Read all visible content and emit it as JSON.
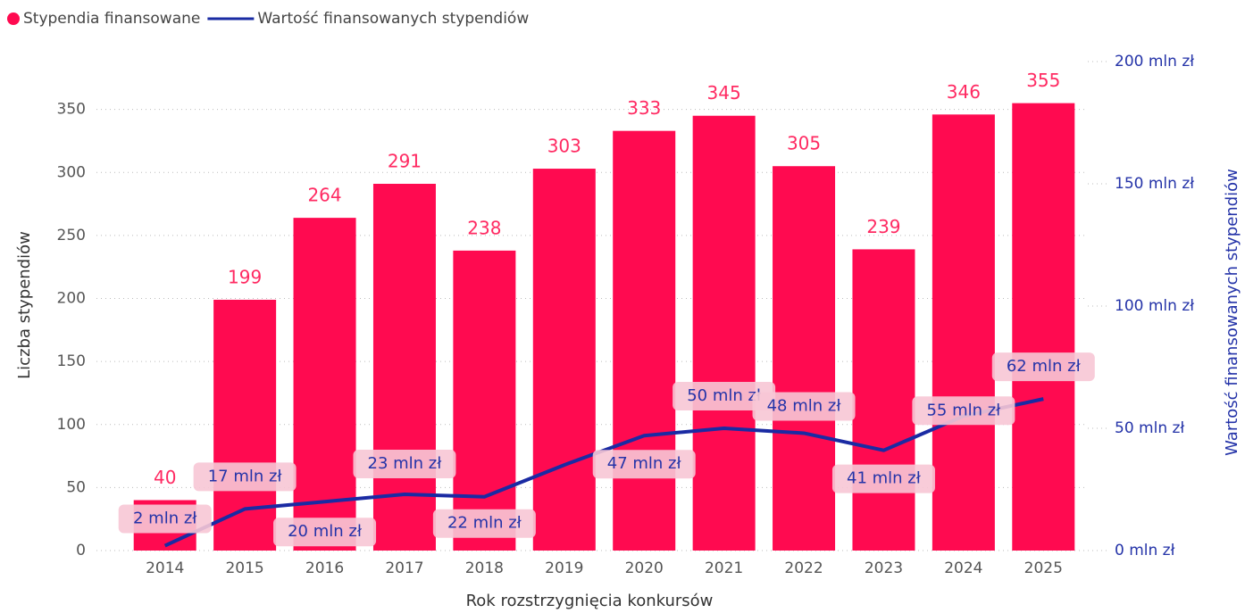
{
  "chart_data": {
    "type": "bar_line",
    "categories": [
      "2014",
      "2015",
      "2016",
      "2017",
      "2018",
      "2019",
      "2020",
      "2021",
      "2022",
      "2023",
      "2024",
      "2025"
    ],
    "series": [
      {
        "name": "Stypendia finansowane",
        "color": "#ff0a50",
        "values": [
          40,
          199,
          264,
          291,
          238,
          303,
          333,
          345,
          305,
          239,
          346,
          355
        ]
      },
      {
        "name": "Wartość finansowanych stypendiów",
        "color": "#1a2ba3",
        "axis": "y2",
        "values": [
          2,
          17,
          20,
          23,
          22,
          35,
          47,
          50,
          48,
          41,
          55,
          62
        ],
        "value_labels": [
          "2 mln zł",
          "17 mln zł",
          "20 mln zł",
          "23 mln zł",
          "22 mln zł",
          null,
          "47 mln zł",
          "50 mln zł",
          "48 mln zł",
          "41 mln zł",
          "55 mln zł",
          "62 mln zł"
        ]
      }
    ],
    "xlabel": "Rok rozstrzygnięcia konkursów",
    "ylabel": "Liczba stypendiów",
    "y2label": "Wartość finansowanych stypendiów",
    "ylim": [
      0,
      388
    ],
    "yticks": [
      0,
      50,
      100,
      150,
      200,
      250,
      300,
      350
    ],
    "y2lim": [
      0,
      200
    ],
    "y2ticks": [
      {
        "value": 0,
        "label": "0 mln zł"
      },
      {
        "value": 50,
        "label": "50 mln zł"
      },
      {
        "value": 100,
        "label": "100 mln zł"
      },
      {
        "value": 150,
        "label": "150 mln zł"
      },
      {
        "value": 200,
        "label": "200 mln zł"
      }
    ],
    "grid": true,
    "legend": "top-left"
  }
}
